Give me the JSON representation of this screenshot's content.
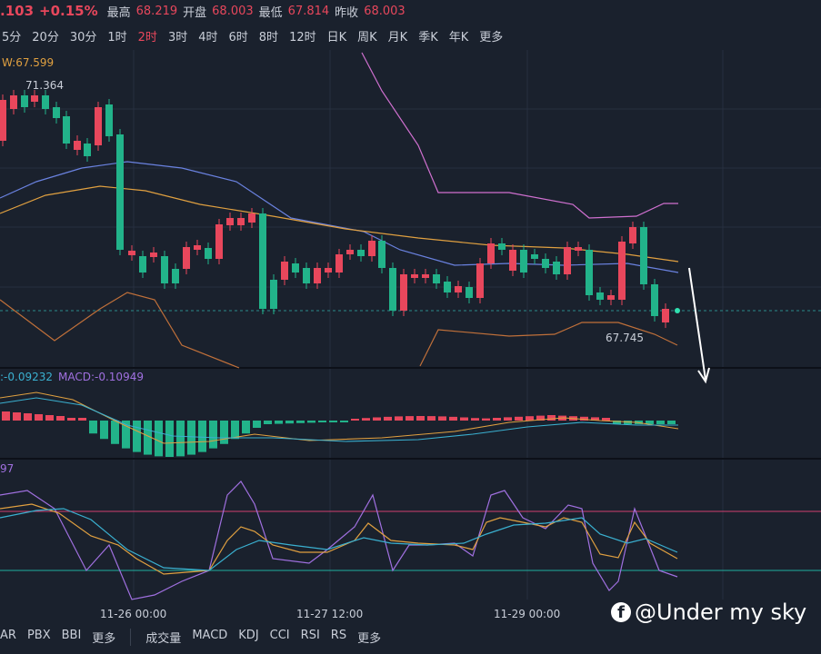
{
  "header": {
    "price": ".103",
    "change": "+0.15%",
    "stats": [
      {
        "label": "最高",
        "value": "68.219"
      },
      {
        "label": "开盘",
        "value": "68.003"
      },
      {
        "label": "最低",
        "value": "67.814"
      },
      {
        "label": "昨收",
        "value": "68.003"
      }
    ]
  },
  "intervals": [
    "5分",
    "20分",
    "30分",
    "1时",
    "2时",
    "3时",
    "4时",
    "6时",
    "8时",
    "12时",
    "日K",
    "周K",
    "月K",
    "季K",
    "年K",
    "更多"
  ],
  "active_interval": 4,
  "main": {
    "ma_label": "W:67.599",
    "high_label": "71.364",
    "low_label": "67.745"
  },
  "macd": {
    "dif": ":-0.09232",
    "macd": "MACD:-0.10949"
  },
  "kdj": {
    "label": "97"
  },
  "x_labels": [
    "11-26 00:00",
    "11-27 12:00",
    "11-29 00:00"
  ],
  "watermark": "@Under my sky",
  "bottom_tabs": {
    "left": [
      "AR",
      "PBX",
      "BBI",
      "更多"
    ],
    "right": [
      "成交量",
      "MACD",
      "KDJ",
      "CCI",
      "RSI",
      "RS",
      "更多"
    ]
  }
}
